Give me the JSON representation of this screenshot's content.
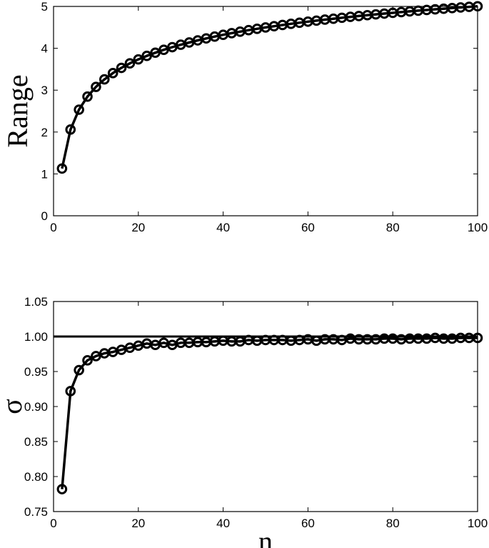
{
  "chart_data": [
    {
      "type": "line",
      "ylabel": "Range",
      "xlabel": "",
      "xlim": [
        0,
        100
      ],
      "ylim": [
        0,
        5
      ],
      "xticks": [
        "0",
        "20",
        "40",
        "60",
        "80",
        "100"
      ],
      "yticks": [
        "0",
        "1",
        "2",
        "3",
        "4",
        "5"
      ],
      "grid": false,
      "series": [
        {
          "x": [
            2,
            4,
            6,
            8,
            10,
            12,
            14,
            16,
            18,
            20,
            22,
            24,
            26,
            28,
            30,
            32,
            34,
            36,
            38,
            40,
            42,
            44,
            46,
            48,
            50,
            52,
            54,
            56,
            58,
            60,
            62,
            64,
            66,
            68,
            70,
            72,
            74,
            76,
            78,
            80,
            82,
            84,
            86,
            88,
            90,
            92,
            94,
            96,
            98,
            100
          ],
          "values": [
            1.128,
            2.059,
            2.534,
            2.847,
            3.078,
            3.258,
            3.407,
            3.532,
            3.64,
            3.735,
            3.819,
            3.895,
            3.964,
            4.027,
            4.086,
            4.139,
            4.189,
            4.236,
            4.28,
            4.322,
            4.361,
            4.398,
            4.433,
            4.466,
            4.498,
            4.528,
            4.557,
            4.585,
            4.611,
            4.637,
            4.661,
            4.685,
            4.707,
            4.729,
            4.751,
            4.771,
            4.791,
            4.81,
            4.829,
            4.847,
            4.865,
            4.882,
            4.899,
            4.915,
            4.931,
            4.946,
            4.961,
            4.976,
            4.99,
            5.004
          ]
        }
      ]
    },
    {
      "type": "line",
      "ylabel": "σ",
      "xlabel": "n",
      "xlim": [
        0,
        100
      ],
      "ylim": [
        0.75,
        1.05
      ],
      "xticks": [
        "0",
        "20",
        "40",
        "60",
        "80",
        "100"
      ],
      "yticks": [
        "0.75",
        "0.80",
        "0.85",
        "0.90",
        "0.95",
        "1.00",
        "1.05"
      ],
      "grid": false,
      "reference_line": 1.0,
      "series": [
        {
          "x": [
            2,
            4,
            6,
            8,
            10,
            12,
            14,
            16,
            18,
            20,
            22,
            24,
            26,
            28,
            30,
            32,
            34,
            36,
            38,
            40,
            42,
            44,
            46,
            48,
            50,
            52,
            54,
            56,
            58,
            60,
            62,
            64,
            66,
            68,
            70,
            72,
            74,
            76,
            78,
            80,
            82,
            84,
            86,
            88,
            90,
            92,
            94,
            96,
            98,
            100
          ],
          "values": [
            0.782,
            0.922,
            0.952,
            0.966,
            0.972,
            0.976,
            0.978,
            0.981,
            0.984,
            0.987,
            0.99,
            0.988,
            0.991,
            0.988,
            0.991,
            0.991,
            0.992,
            0.992,
            0.993,
            0.994,
            0.993,
            0.993,
            0.995,
            0.994,
            0.995,
            0.995,
            0.995,
            0.994,
            0.995,
            0.996,
            0.994,
            0.996,
            0.996,
            0.995,
            0.997,
            0.996,
            0.996,
            0.996,
            0.997,
            0.997,
            0.996,
            0.997,
            0.997,
            0.997,
            0.998,
            0.997,
            0.997,
            0.998,
            0.998,
            0.998
          ]
        }
      ]
    }
  ]
}
